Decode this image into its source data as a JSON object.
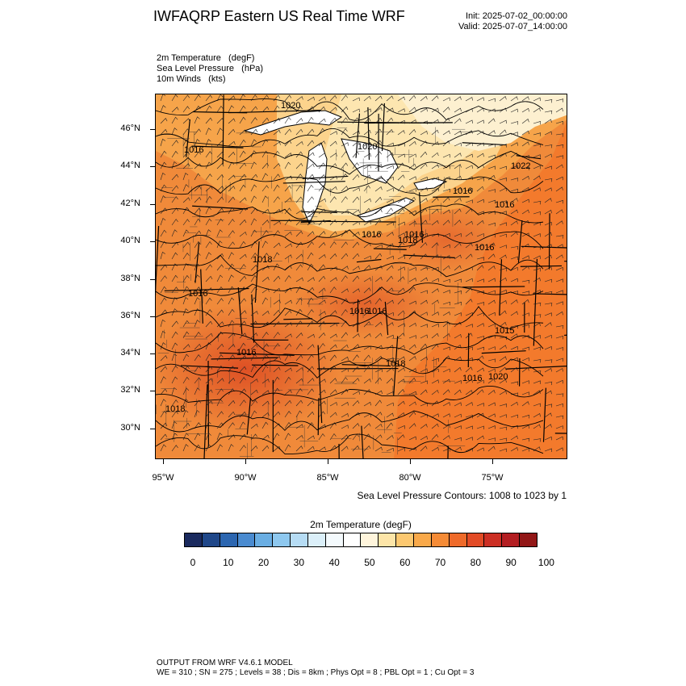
{
  "header": {
    "title": "IWFAQRP Eastern US Real Time WRF",
    "init": "Init: 2025-07-02_00:00:00",
    "valid": "Valid: 2025-07-07_14:00:00"
  },
  "fields": [
    "2m Temperature   (degF)",
    "Sea Level Pressure   (hPa)",
    "10m Winds   (kts)"
  ],
  "map": {
    "lat_labels": [
      "46°N",
      "44°N",
      "42°N",
      "40°N",
      "38°N",
      "36°N",
      "34°N",
      "32°N",
      "30°N"
    ],
    "lon_labels": [
      "95°W",
      "90°W",
      "85°W",
      "80°W",
      "75°W"
    ],
    "isobar_labels": [
      "1020",
      "1016",
      "1020",
      "1016",
      "1016",
      "1018",
      "1018",
      "1016",
      "1016",
      "1016",
      "1016",
      "1018",
      "1016",
      "1015",
      "1016",
      "1020",
      "1018",
      "1022",
      "1016",
      "1016"
    ],
    "colors": {
      "cool": "#fdf0d0",
      "mild": "#fcd38c",
      "warm": "#f6a44a",
      "hot": "#ee7b30",
      "hotter": "#e0582a",
      "ocean": "#f47c2c",
      "lake": "#ffffff"
    }
  },
  "contour_note": "Sea Level Pressure Contours: 1008 to 1023 by 1",
  "colorbar": {
    "title": "2m Temperature  (degF)",
    "colors": [
      "#1a2a5e",
      "#1f4789",
      "#2c66b0",
      "#4a8bd0",
      "#6aaee3",
      "#8ec8ef",
      "#b6dcf4",
      "#dbeff9",
      "#f4fafd",
      "#ffffff",
      "#fff5dc",
      "#fde5a8",
      "#fcc870",
      "#f9a94a",
      "#f58b36",
      "#ee6a2a",
      "#e24b26",
      "#cc2f24",
      "#b31e22",
      "#921717"
    ],
    "labels": [
      "0",
      "10",
      "20",
      "30",
      "40",
      "50",
      "60",
      "70",
      "80",
      "90",
      "100"
    ]
  },
  "footer": {
    "line1": "OUTPUT FROM WRF V4.6.1 MODEL",
    "line2": "WE = 310 ; SN = 275 ; Levels = 38 ; Dis = 8km ; Phys Opt = 8 ; PBL Opt = 1 ; Cu Opt = 3"
  }
}
